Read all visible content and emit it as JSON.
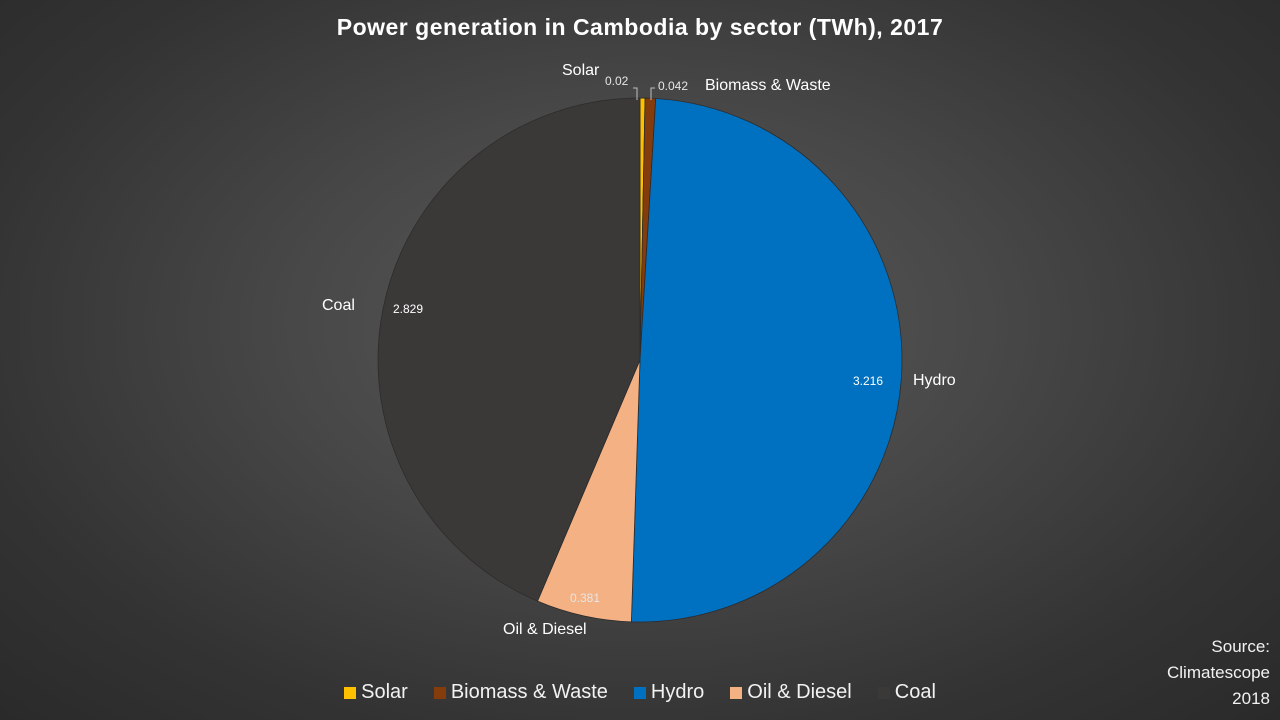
{
  "chart_data": {
    "type": "pie",
    "title": "Power generation in Cambodia by sector (TWh), 2017",
    "unit": "TWh",
    "categories": [
      "Solar",
      "Biomass & Waste",
      "Hydro",
      "Oil & Diesel",
      "Coal"
    ],
    "values": [
      0.02,
      0.042,
      3.216,
      0.381,
      2.829
    ],
    "value_labels": [
      "0.02",
      "0.042",
      "3.216",
      "0.381",
      "2.829"
    ],
    "colors": [
      "#ffc000",
      "#843c0c",
      "#0070c0",
      "#f4b183",
      "#3b3838"
    ],
    "legend_position": "bottom",
    "start_angle_deg": 0,
    "direction": "clockwise",
    "source": "Source: Climatescope 2018"
  },
  "title": "Power generation in Cambodia by sector (TWh), 2017",
  "labels": {
    "solar": "Solar",
    "biomass": "Biomass & Waste",
    "hydro": "Hydro",
    "oil": "Oil & Diesel",
    "coal": "Coal"
  },
  "values": {
    "solar": "0.02",
    "biomass": "0.042",
    "hydro": "3.216",
    "oil": "0.381",
    "coal": "2.829"
  },
  "legend": [
    {
      "label": "Solar",
      "color": "#ffc000"
    },
    {
      "label": "Biomass & Waste",
      "color": "#843c0c"
    },
    {
      "label": "Hydro",
      "color": "#0070c0"
    },
    {
      "label": "Oil & Diesel",
      "color": "#f4b183"
    },
    {
      "label": "Coal",
      "color": "#3b3838"
    }
  ],
  "source": {
    "line1": "Source:",
    "line2": "Climatescope",
    "line3": "2018"
  }
}
